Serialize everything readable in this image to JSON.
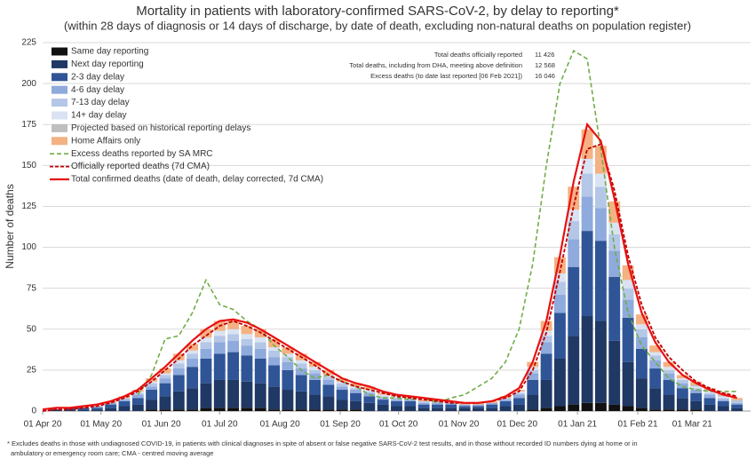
{
  "chart_data": {
    "type": "stacked-bar-line",
    "title": "Mortality in patients with laboratory-confirmed SARS-CoV-2, by delay to reporting*",
    "subtitle": "(within 28 days of diagnosis or 14 days of discharge, by date of death, excluding non-natural deaths on population register)",
    "y_label": "Number of deaths",
    "annotations": [
      {
        "label": "Total deaths officially reported",
        "value": "11 426"
      },
      {
        "label": "Total deaths, including from DHA, meeting above definition",
        "value": "12 568"
      },
      {
        "label": "Excess deaths (to date last reported [06 Feb 2021])",
        "value": "16 046"
      }
    ],
    "footnote": [
      "* Excludes deaths in those with undiagnosed COVID-19, in  patients with clinical diagnoses in spite of absent or false negative SARS-CoV-2 test results, and in those without recorded ID numbers dying at home or in",
      "ambulatory or emergency room care; CMA - centred moving average"
    ],
    "grid": true,
    "ylim": [
      0,
      225
    ],
    "yticks": [
      0,
      25,
      50,
      75,
      100,
      125,
      150,
      175,
      200,
      225
    ],
    "xlim": [
      "2020-04-01",
      "2021-03-31"
    ],
    "xticks": [
      {
        "value": "2020-04-01",
        "label": "01 Apr 20"
      },
      {
        "value": "2020-05-01",
        "label": "01 May 20"
      },
      {
        "value": "2020-06-01",
        "label": "01 Jun 20"
      },
      {
        "value": "2020-07-01",
        "label": "01 Jul 20"
      },
      {
        "value": "2020-08-01",
        "label": "01 Aug 20"
      },
      {
        "value": "2020-09-01",
        "label": "01 Sep 20"
      },
      {
        "value": "2020-10-01",
        "label": "01 Oct 20"
      },
      {
        "value": "2020-11-01",
        "label": "01 Nov 20"
      },
      {
        "value": "2020-12-01",
        "label": "01 Dec 20"
      },
      {
        "value": "2021-01-01",
        "label": "01 Jan 21"
      },
      {
        "value": "2021-02-01",
        "label": "01 Feb 21"
      },
      {
        "value": "2021-03-01",
        "label": "01 Mar 21"
      }
    ],
    "x": [
      "2020-04-01",
      "2020-04-08",
      "2020-04-15",
      "2020-04-22",
      "2020-04-29",
      "2020-05-06",
      "2020-05-13",
      "2020-05-20",
      "2020-05-27",
      "2020-06-03",
      "2020-06-10",
      "2020-06-17",
      "2020-06-24",
      "2020-07-01",
      "2020-07-08",
      "2020-07-15",
      "2020-07-22",
      "2020-07-29",
      "2020-08-05",
      "2020-08-12",
      "2020-08-19",
      "2020-08-26",
      "2020-09-02",
      "2020-09-09",
      "2020-09-16",
      "2020-09-23",
      "2020-09-30",
      "2020-10-07",
      "2020-10-14",
      "2020-10-21",
      "2020-10-28",
      "2020-11-04",
      "2020-11-11",
      "2020-11-18",
      "2020-11-25",
      "2020-12-02",
      "2020-12-09",
      "2020-12-16",
      "2020-12-23",
      "2020-12-30",
      "2021-01-06",
      "2021-01-13",
      "2021-01-20",
      "2021-01-27",
      "2021-02-03",
      "2021-02-10",
      "2021-02-17",
      "2021-02-24",
      "2021-03-03",
      "2021-03-10",
      "2021-03-17",
      "2021-03-24"
    ],
    "series": [
      {
        "name": "Same day reporting",
        "kind": "bar",
        "color": "#111111",
        "values": [
          0,
          0,
          0,
          0,
          0,
          0,
          0,
          0,
          1,
          1,
          1,
          1,
          2,
          2,
          2,
          2,
          2,
          1,
          1,
          1,
          1,
          1,
          1,
          1,
          0,
          0,
          0,
          0,
          0,
          0,
          0,
          0,
          0,
          0,
          0,
          0,
          1,
          2,
          3,
          4,
          5,
          5,
          4,
          3,
          2,
          1,
          1,
          1,
          1,
          0,
          0,
          0
        ]
      },
      {
        "name": "Next day reporting",
        "kind": "bar",
        "color": "#1f3864",
        "values": [
          0,
          1,
          1,
          1,
          1,
          2,
          3,
          4,
          6,
          8,
          11,
          13,
          15,
          17,
          17,
          16,
          15,
          14,
          12,
          11,
          9,
          8,
          6,
          5,
          5,
          4,
          3,
          3,
          2,
          2,
          2,
          2,
          2,
          2,
          3,
          4,
          9,
          17,
          29,
          42,
          53,
          50,
          39,
          27,
          18,
          13,
          9,
          7,
          5,
          4,
          3,
          2
        ]
      },
      {
        "name": "2-3 day delay",
        "kind": "bar",
        "color": "#2f5597",
        "values": [
          0,
          0,
          1,
          1,
          1,
          2,
          3,
          4,
          6,
          8,
          10,
          13,
          15,
          16,
          17,
          16,
          15,
          13,
          12,
          10,
          9,
          7,
          6,
          5,
          4,
          3,
          3,
          3,
          2,
          2,
          2,
          1,
          1,
          2,
          3,
          4,
          9,
          16,
          28,
          42,
          52,
          49,
          39,
          27,
          18,
          12,
          9,
          6,
          5,
          4,
          3,
          2
        ]
      },
      {
        "name": "4-6 day delay",
        "kind": "bar",
        "color": "#8faadc",
        "values": [
          0,
          0,
          0,
          0,
          1,
          1,
          1,
          2,
          2,
          3,
          4,
          5,
          6,
          7,
          7,
          6,
          6,
          5,
          5,
          4,
          4,
          3,
          2,
          2,
          2,
          1,
          1,
          1,
          1,
          1,
          1,
          1,
          1,
          1,
          1,
          2,
          4,
          7,
          11,
          17,
          21,
          20,
          16,
          11,
          7,
          5,
          4,
          3,
          2,
          2,
          1,
          1
        ]
      },
      {
        "name": "7-13 day delay",
        "kind": "bar",
        "color": "#b4c7e7",
        "values": [
          0,
          0,
          0,
          0,
          0,
          0,
          1,
          1,
          2,
          2,
          3,
          3,
          4,
          4,
          4,
          4,
          4,
          4,
          3,
          3,
          2,
          2,
          2,
          1,
          1,
          1,
          1,
          1,
          1,
          1,
          0,
          0,
          0,
          0,
          1,
          1,
          2,
          4,
          8,
          11,
          14,
          13,
          10,
          7,
          5,
          3,
          2,
          2,
          1,
          1,
          1,
          1
        ]
      },
      {
        "name": "14+ day delay",
        "kind": "bar",
        "color": "#dae3f3",
        "values": [
          0,
          0,
          0,
          0,
          0,
          0,
          0,
          1,
          1,
          1,
          2,
          2,
          3,
          3,
          3,
          3,
          3,
          2,
          2,
          2,
          2,
          1,
          1,
          1,
          1,
          1,
          1,
          0,
          0,
          0,
          0,
          0,
          0,
          0,
          0,
          1,
          2,
          3,
          5,
          7,
          9,
          8,
          7,
          5,
          3,
          2,
          2,
          1,
          1,
          1,
          1,
          0
        ]
      },
      {
        "name": "Projected based on historical reporting delays",
        "kind": "bar",
        "color": "#bfbfbf",
        "values": [
          0,
          0,
          0,
          0,
          0,
          0,
          0,
          0,
          0,
          0,
          0,
          0,
          0,
          0,
          0,
          0,
          0,
          0,
          0,
          0,
          0,
          0,
          0,
          0,
          0,
          0,
          0,
          0,
          0,
          0,
          0,
          0,
          0,
          0,
          0,
          0,
          0,
          0,
          0,
          0,
          0,
          0,
          0,
          0,
          0,
          0,
          0,
          0,
          1,
          1,
          1,
          1
        ]
      },
      {
        "name": "Home Affairs only",
        "kind": "bar",
        "color": "#f4b183",
        "values": [
          0,
          0,
          0,
          0,
          0,
          1,
          1,
          1,
          2,
          3,
          4,
          4,
          5,
          6,
          6,
          5,
          5,
          5,
          4,
          4,
          3,
          3,
          2,
          2,
          2,
          1,
          1,
          1,
          1,
          1,
          1,
          1,
          1,
          1,
          1,
          1,
          3,
          6,
          10,
          14,
          18,
          17,
          13,
          9,
          6,
          4,
          3,
          2,
          2,
          1,
          1,
          1
        ]
      },
      {
        "name": "Excess deaths reported by SA MRC",
        "kind": "line",
        "dash": "5,3",
        "width": 1.6,
        "color": "#70ad47",
        "values": [
          null,
          null,
          null,
          null,
          null,
          null,
          null,
          10,
          22,
          44,
          46,
          60,
          80,
          65,
          62,
          55,
          50,
          40,
          33,
          25,
          20,
          22,
          18,
          15,
          10,
          8,
          8,
          7,
          8,
          5,
          8,
          10,
          15,
          20,
          30,
          50,
          90,
          150,
          200,
          220,
          215,
          160,
          100,
          60,
          40,
          30,
          20,
          15,
          13,
          12,
          12,
          12
        ]
      },
      {
        "name": "Officially reported deaths (7d CMA)",
        "kind": "line",
        "dash": "4,2",
        "width": 1.8,
        "color": "#c00000",
        "values": [
          0,
          1,
          1,
          2,
          3,
          5,
          8,
          12,
          18,
          25,
          32,
          40,
          46,
          52,
          55,
          52,
          48,
          43,
          38,
          33,
          28,
          22,
          18,
          15,
          13,
          11,
          9,
          8,
          7,
          6,
          5,
          5,
          5,
          6,
          8,
          12,
          25,
          48,
          85,
          125,
          160,
          163,
          135,
          95,
          65,
          45,
          33,
          25,
          18,
          14,
          11,
          9
        ]
      },
      {
        "name": "Total confirmed deaths (date of death, delay corrected, 7d CMA)",
        "kind": "line",
        "width": 2.2,
        "color": "#e81010",
        "values": [
          1,
          2,
          2,
          3,
          4,
          6,
          9,
          13,
          20,
          27,
          35,
          43,
          50,
          55,
          56,
          54,
          50,
          45,
          40,
          35,
          30,
          25,
          20,
          17,
          15,
          12,
          10,
          9,
          8,
          7,
          6,
          5,
          5,
          6,
          9,
          14,
          30,
          55,
          95,
          140,
          175,
          165,
          130,
          90,
          60,
          42,
          30,
          22,
          17,
          13,
          10,
          8
        ]
      }
    ]
  }
}
